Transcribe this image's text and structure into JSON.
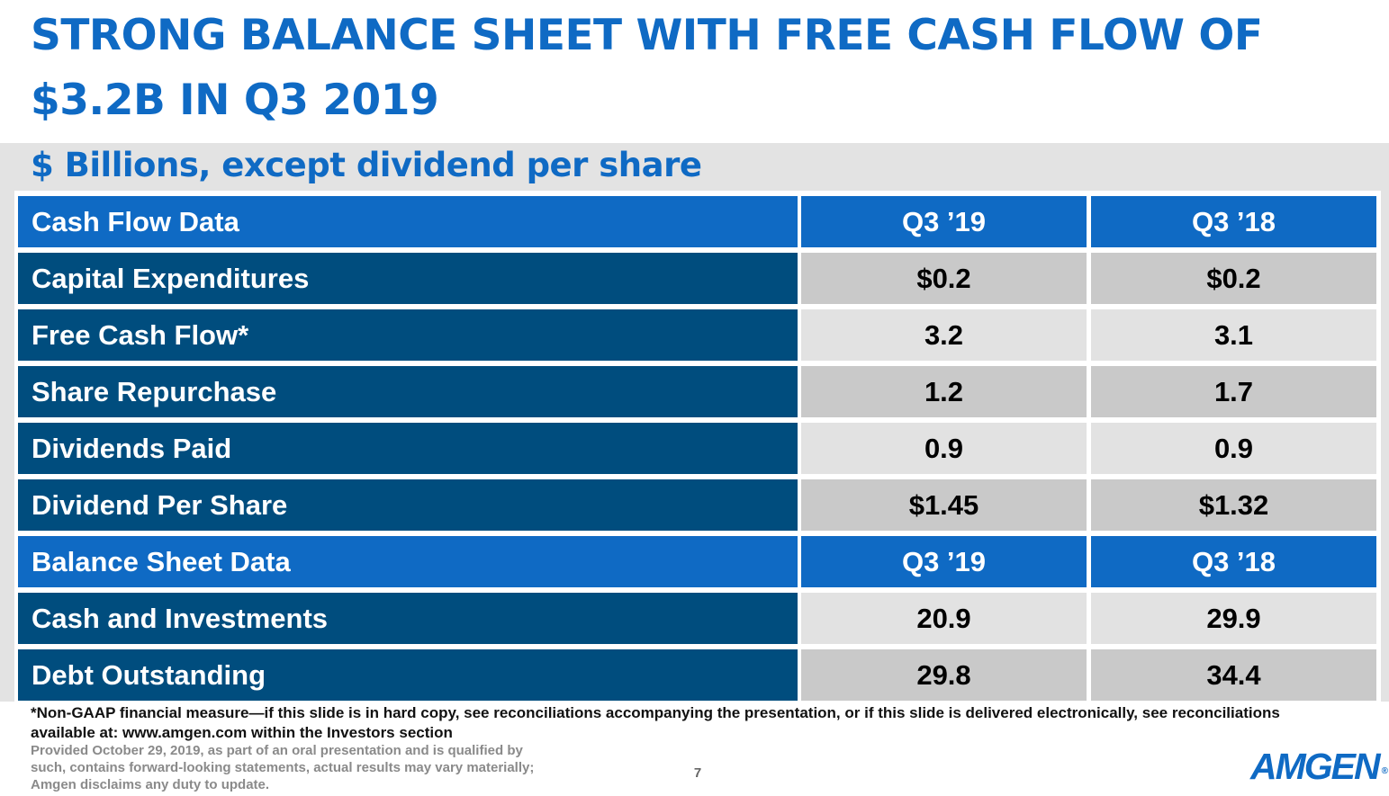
{
  "slide": {
    "title": "STRONG BALANCE SHEET WITH FREE CASH FLOW OF $3.2B IN Q3 2019",
    "subtitle": "$ Billions, except dividend per share"
  },
  "table": {
    "cash_flow_header": {
      "label": "Cash Flow Data",
      "col_a": "Q3 ’19",
      "col_b": "Q3 ’18"
    },
    "cash_flow_rows": [
      {
        "label": "Capital Expenditures",
        "a": "$0.2",
        "b": "$0.2"
      },
      {
        "label": "Free Cash Flow*",
        "a": "3.2",
        "b": "3.1"
      },
      {
        "label": "Share Repurchase",
        "a": "1.2",
        "b": "1.7"
      },
      {
        "label": "Dividends Paid",
        "a": "0.9",
        "b": "0.9"
      },
      {
        "label": "Dividend Per Share",
        "a": "$1.45",
        "b": "$1.32"
      }
    ],
    "balance_header": {
      "label": "Balance Sheet Data",
      "col_a": "Q3 ’19",
      "col_b": "Q3 ’18"
    },
    "balance_rows": [
      {
        "label": "Cash and Investments",
        "a": "20.9",
        "b": "29.9"
      },
      {
        "label": "Debt Outstanding",
        "a": "29.8",
        "b": "34.4"
      }
    ]
  },
  "footer": {
    "footnote": "*Non-GAAP financial measure—if this slide is in hard copy, see reconciliations accompanying the presentation, or if this slide is delivered electronically, see reconciliations available at: www.amgen.com within the Investors section",
    "disclaimer": "Provided October 29, 2019, as part of an oral presentation and is qualified by such, contains forward-looking statements, actual results may vary materially; Amgen disclaims any duty to update.",
    "page_number": "7",
    "logo_text": "AMGEN",
    "logo_mark": "®"
  },
  "colors": {
    "accent_blue": "#0f6ac4",
    "navy": "#004d7e",
    "cell_dark": "#c9c9c9",
    "cell_light": "#e2e2e2"
  }
}
